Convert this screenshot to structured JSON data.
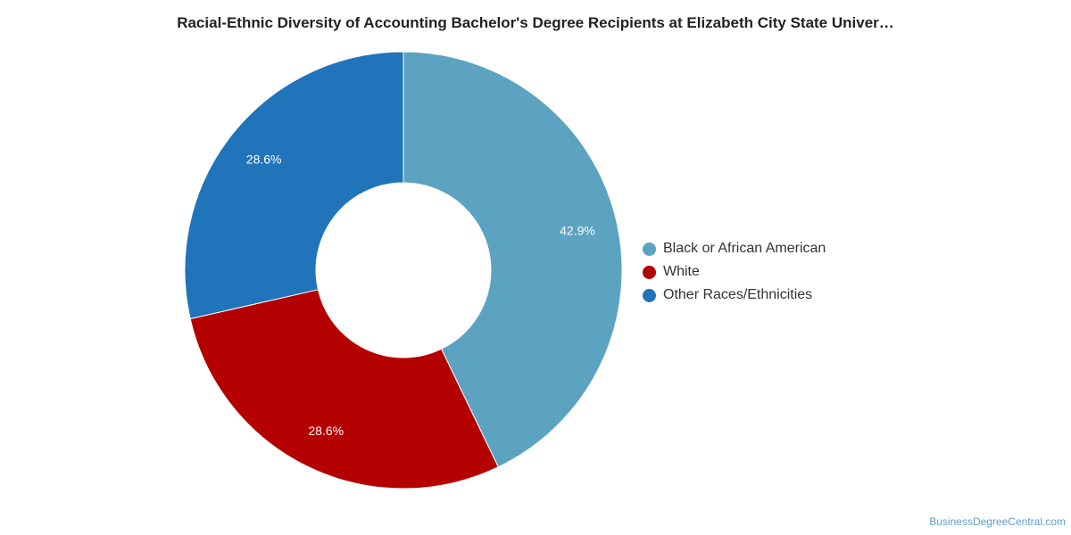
{
  "chart_data": {
    "type": "pie",
    "title": "Racial-Ethnic Diversity of Accounting Bachelor's Degree Recipients at Elizabeth City State Univer…",
    "series": [
      {
        "name": "Black or African American",
        "value": 42.9,
        "label": "42.9%",
        "color": "#5ba3c1"
      },
      {
        "name": "White",
        "value": 28.6,
        "label": "28.6%",
        "color": "#b50000"
      },
      {
        "name": "Other Races/Ethnicities",
        "value": 28.6,
        "label": "28.6%",
        "color": "#1f74ba"
      }
    ],
    "legend_position": "right"
  },
  "credit": "BusinessDegreeCentral.com"
}
